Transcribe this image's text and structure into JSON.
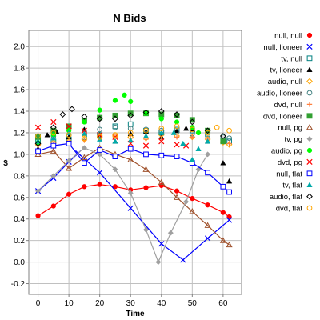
{
  "chart_data": {
    "type": "line",
    "title": "N Bids",
    "xlabel": "Time",
    "ylabel": "$",
    "xlim": [
      -3,
      66
    ],
    "ylim": [
      -0.3,
      2.15
    ],
    "xticks": [
      0,
      10,
      20,
      30,
      40,
      50,
      60
    ],
    "yticks": [
      -0.2,
      0.0,
      0.2,
      0.4,
      0.6,
      0.8,
      1.0,
      1.2,
      1.4,
      1.6,
      1.8,
      2.0
    ],
    "grid": true,
    "legend_position": "right",
    "series": [
      {
        "name": "null, null",
        "color": "#ff0000",
        "marker": "circle",
        "line": true,
        "points": [
          [
            0,
            0.43
          ],
          [
            5,
            0.52
          ],
          [
            10,
            0.63
          ],
          [
            15,
            0.7
          ],
          [
            20,
            0.72
          ],
          [
            25,
            0.7
          ],
          [
            30,
            0.67
          ],
          [
            35,
            0.69
          ],
          [
            40,
            0.71
          ],
          [
            45,
            0.66
          ],
          [
            50,
            0.59
          ],
          [
            55,
            0.53
          ],
          [
            60,
            0.46
          ],
          [
            62,
            0.42
          ]
        ]
      },
      {
        "name": "null, lioneer",
        "color": "#0000ff",
        "marker": "cross",
        "line": true,
        "points": [
          [
            0,
            0.66
          ],
          [
            5,
            0.78
          ],
          [
            10,
            0.93
          ],
          [
            13,
            1.01
          ],
          [
            20,
            0.83
          ],
          [
            30,
            0.5
          ],
          [
            40,
            0.17
          ],
          [
            47,
            0.02
          ],
          [
            55,
            0.22
          ],
          [
            62,
            0.39
          ]
        ]
      },
      {
        "name": "tv, null",
        "color": "#008080",
        "marker": "square-open",
        "line": false,
        "points": [
          [
            0,
            1.13
          ],
          [
            5,
            1.12
          ],
          [
            10,
            1.14
          ],
          [
            15,
            1.16
          ],
          [
            20,
            1.18
          ],
          [
            25,
            1.26
          ],
          [
            30,
            1.28
          ],
          [
            35,
            1.22
          ],
          [
            40,
            1.2
          ],
          [
            45,
            1.23
          ],
          [
            50,
            1.22
          ],
          [
            55,
            1.19
          ],
          [
            60,
            1.13
          ],
          [
            62,
            1.12
          ]
        ]
      },
      {
        "name": "tv, lioneer",
        "color": "#000000",
        "marker": "triangle",
        "line": false,
        "points": [
          [
            0,
            1.05
          ],
          [
            3,
            1.18
          ],
          [
            6,
            1.21
          ],
          [
            10,
            1.16
          ],
          [
            15,
            1.23
          ],
          [
            20,
            1.18
          ],
          [
            25,
            1.12
          ],
          [
            30,
            1.19
          ],
          [
            35,
            1.21
          ],
          [
            40,
            1.16
          ],
          [
            45,
            1.22
          ],
          [
            48,
            1.24
          ],
          [
            50,
            1.23
          ],
          [
            55,
            1.12
          ],
          [
            60,
            0.92
          ],
          [
            62,
            0.75
          ]
        ]
      },
      {
        "name": "audio, null",
        "color": "#ffa500",
        "marker": "diamond-open",
        "line": false,
        "points": [
          [
            0,
            1.09
          ],
          [
            5,
            1.11
          ],
          [
            10,
            1.12
          ],
          [
            15,
            1.14
          ],
          [
            20,
            1.17
          ],
          [
            25,
            1.17
          ],
          [
            30,
            1.16
          ],
          [
            35,
            1.15
          ],
          [
            40,
            1.18
          ],
          [
            45,
            1.17
          ],
          [
            50,
            1.16
          ],
          [
            55,
            1.14
          ],
          [
            60,
            1.11
          ],
          [
            62,
            1.09
          ]
        ]
      },
      {
        "name": "audio, lioneer",
        "color": "#408080",
        "marker": "circle-open",
        "line": false,
        "points": [
          [
            0,
            1.16
          ],
          [
            5,
            1.17
          ],
          [
            10,
            1.18
          ],
          [
            15,
            1.2
          ],
          [
            20,
            1.23
          ],
          [
            25,
            1.25
          ],
          [
            30,
            1.24
          ],
          [
            35,
            1.23
          ],
          [
            40,
            1.22
          ],
          [
            45,
            1.21
          ],
          [
            50,
            1.19
          ],
          [
            55,
            1.17
          ],
          [
            60,
            1.16
          ],
          [
            62,
            1.15
          ]
        ]
      },
      {
        "name": "dvd, null",
        "color": "#ff8040",
        "marker": "plus",
        "line": false,
        "points": [
          [
            0,
            1.08
          ],
          [
            5,
            1.1
          ],
          [
            10,
            1.11
          ],
          [
            15,
            1.13
          ],
          [
            20,
            1.15
          ],
          [
            25,
            1.16
          ],
          [
            30,
            1.15
          ],
          [
            35,
            1.14
          ],
          [
            40,
            1.15
          ],
          [
            45,
            1.16
          ],
          [
            50,
            1.16
          ],
          [
            55,
            1.14
          ],
          [
            60,
            1.12
          ],
          [
            62,
            1.1
          ]
        ]
      },
      {
        "name": "dvd, lioneer",
        "color": "#32a032",
        "marker": "square",
        "line": false,
        "points": [
          [
            0,
            1.16
          ],
          [
            5,
            1.22
          ],
          [
            10,
            1.26
          ],
          [
            15,
            1.31
          ],
          [
            20,
            1.34
          ],
          [
            25,
            1.36
          ],
          [
            30,
            1.38
          ],
          [
            35,
            1.38
          ],
          [
            40,
            1.37
          ],
          [
            45,
            1.36
          ],
          [
            50,
            1.32
          ],
          [
            55,
            1.22
          ],
          [
            60,
            1.12
          ]
        ]
      },
      {
        "name": "null, pg",
        "color": "#a0522d",
        "marker": "triangle-open",
        "line": true,
        "points": [
          [
            0,
            1.0
          ],
          [
            5,
            1.03
          ],
          [
            10,
            0.87
          ],
          [
            15,
            0.97
          ],
          [
            20,
            1.06
          ],
          [
            25,
            1.0
          ],
          [
            30,
            0.95
          ],
          [
            35,
            0.86
          ],
          [
            40,
            0.74
          ],
          [
            45,
            0.6
          ],
          [
            50,
            0.47
          ],
          [
            55,
            0.34
          ],
          [
            60,
            0.2
          ],
          [
            62,
            0.16
          ]
        ]
      },
      {
        "name": "tv, pg",
        "color": "#a0a0a0",
        "marker": "diamond",
        "line": true,
        "points": [
          [
            0,
            0.66
          ],
          [
            5,
            0.8
          ],
          [
            10,
            0.94
          ],
          [
            15,
            1.06
          ],
          [
            20,
            1.0
          ],
          [
            25,
            0.86
          ],
          [
            30,
            0.64
          ],
          [
            35,
            0.3
          ],
          [
            39,
            0.0
          ],
          [
            43,
            0.27
          ],
          [
            48,
            0.56
          ],
          [
            52,
            0.86
          ],
          [
            55,
            1.0
          ]
        ]
      },
      {
        "name": "audio, pg",
        "color": "#00ff00",
        "marker": "circle",
        "line": false,
        "points": [
          [
            0,
            1.11
          ],
          [
            5,
            1.18
          ],
          [
            10,
            1.22
          ],
          [
            15,
            1.3
          ],
          [
            20,
            1.41
          ],
          [
            25,
            1.5
          ],
          [
            28,
            1.55
          ],
          [
            30,
            1.49
          ],
          [
            35,
            1.38
          ],
          [
            40,
            1.33
          ],
          [
            45,
            1.3
          ],
          [
            50,
            1.25
          ],
          [
            52,
            1.2
          ]
        ]
      },
      {
        "name": "dvd, pg",
        "color": "#ff0000",
        "marker": "cross",
        "line": false,
        "points": [
          [
            0,
            1.25
          ],
          [
            5,
            1.3
          ],
          [
            10,
            1.26
          ],
          [
            15,
            1.22
          ],
          [
            20,
            1.18
          ],
          [
            25,
            1.16
          ],
          [
            30,
            1.1
          ],
          [
            35,
            1.08
          ],
          [
            40,
            1.12
          ],
          [
            45,
            1.09
          ],
          [
            48,
            1.08
          ]
        ]
      },
      {
        "name": "null, flat",
        "color": "#0000ff",
        "marker": "square-open",
        "line": true,
        "points": [
          [
            0,
            1.03
          ],
          [
            5,
            1.08
          ],
          [
            10,
            1.1
          ],
          [
            15,
            0.92
          ],
          [
            20,
            1.04
          ],
          [
            25,
            0.98
          ],
          [
            30,
            1.05
          ],
          [
            35,
            1.0
          ],
          [
            40,
            0.99
          ],
          [
            45,
            0.98
          ],
          [
            50,
            0.92
          ],
          [
            55,
            0.83
          ],
          [
            60,
            0.7
          ],
          [
            62,
            0.65
          ]
        ]
      },
      {
        "name": "tv, flat",
        "color": "#00aaaa",
        "marker": "triangle",
        "line": false,
        "points": [
          [
            0,
            1.12
          ],
          [
            5,
            1.15
          ],
          [
            10,
            1.2
          ],
          [
            15,
            1.19
          ],
          [
            20,
            1.14
          ],
          [
            25,
            1.12
          ],
          [
            30,
            1.13
          ],
          [
            35,
            1.17
          ],
          [
            40,
            1.2
          ],
          [
            44,
            1.2
          ],
          [
            47,
            1.1
          ],
          [
            50,
            0.95
          ],
          [
            52,
            1.05
          ],
          [
            55,
            1.12
          ]
        ]
      },
      {
        "name": "audio, flat",
        "color": "#000000",
        "marker": "diamond-open",
        "line": false,
        "points": [
          [
            0,
            1.1
          ],
          [
            5,
            1.25
          ],
          [
            8,
            1.37
          ],
          [
            11,
            1.42
          ],
          [
            15,
            1.35
          ],
          [
            20,
            1.33
          ],
          [
            25,
            1.33
          ],
          [
            30,
            1.36
          ],
          [
            35,
            1.39
          ],
          [
            40,
            1.4
          ],
          [
            45,
            1.37
          ],
          [
            50,
            1.3
          ],
          [
            55,
            1.22
          ],
          [
            60,
            1.17
          ]
        ]
      },
      {
        "name": "dvd, flat",
        "color": "#ffa500",
        "marker": "circle-open",
        "line": false,
        "points": [
          [
            0,
            1.17
          ],
          [
            5,
            1.2
          ],
          [
            10,
            1.18
          ],
          [
            15,
            1.15
          ],
          [
            20,
            1.16
          ],
          [
            25,
            1.18
          ],
          [
            30,
            1.2
          ],
          [
            35,
            1.22
          ],
          [
            40,
            1.24
          ],
          [
            45,
            1.26
          ],
          [
            50,
            1.23
          ],
          [
            55,
            1.2
          ],
          [
            58,
            1.25
          ],
          [
            62,
            1.22
          ]
        ]
      }
    ]
  }
}
